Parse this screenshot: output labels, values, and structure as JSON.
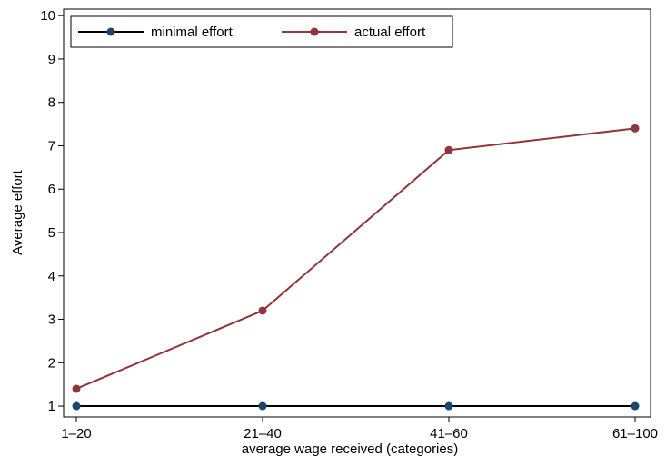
{
  "chart_data": {
    "type": "line",
    "title": "",
    "xlabel": "average wage received (categories)",
    "ylabel": "Average effort",
    "categories": [
      "1–20",
      "21–40",
      "41–60",
      "61–100"
    ],
    "ylim": [
      0.75,
      10.15
    ],
    "yticks": [
      1,
      2,
      3,
      4,
      5,
      6,
      7,
      8,
      9,
      10
    ],
    "grid": false,
    "legend_position": "top-left",
    "series": [
      {
        "name": "minimal effort",
        "color": "#000000",
        "marker_color": "#1a476f",
        "values": [
          1,
          1,
          1,
          1
        ]
      },
      {
        "name": "actual effort",
        "color": "#90353b",
        "marker_color": "#90353b",
        "values": [
          1.4,
          3.2,
          6.9,
          7.4
        ]
      }
    ]
  }
}
